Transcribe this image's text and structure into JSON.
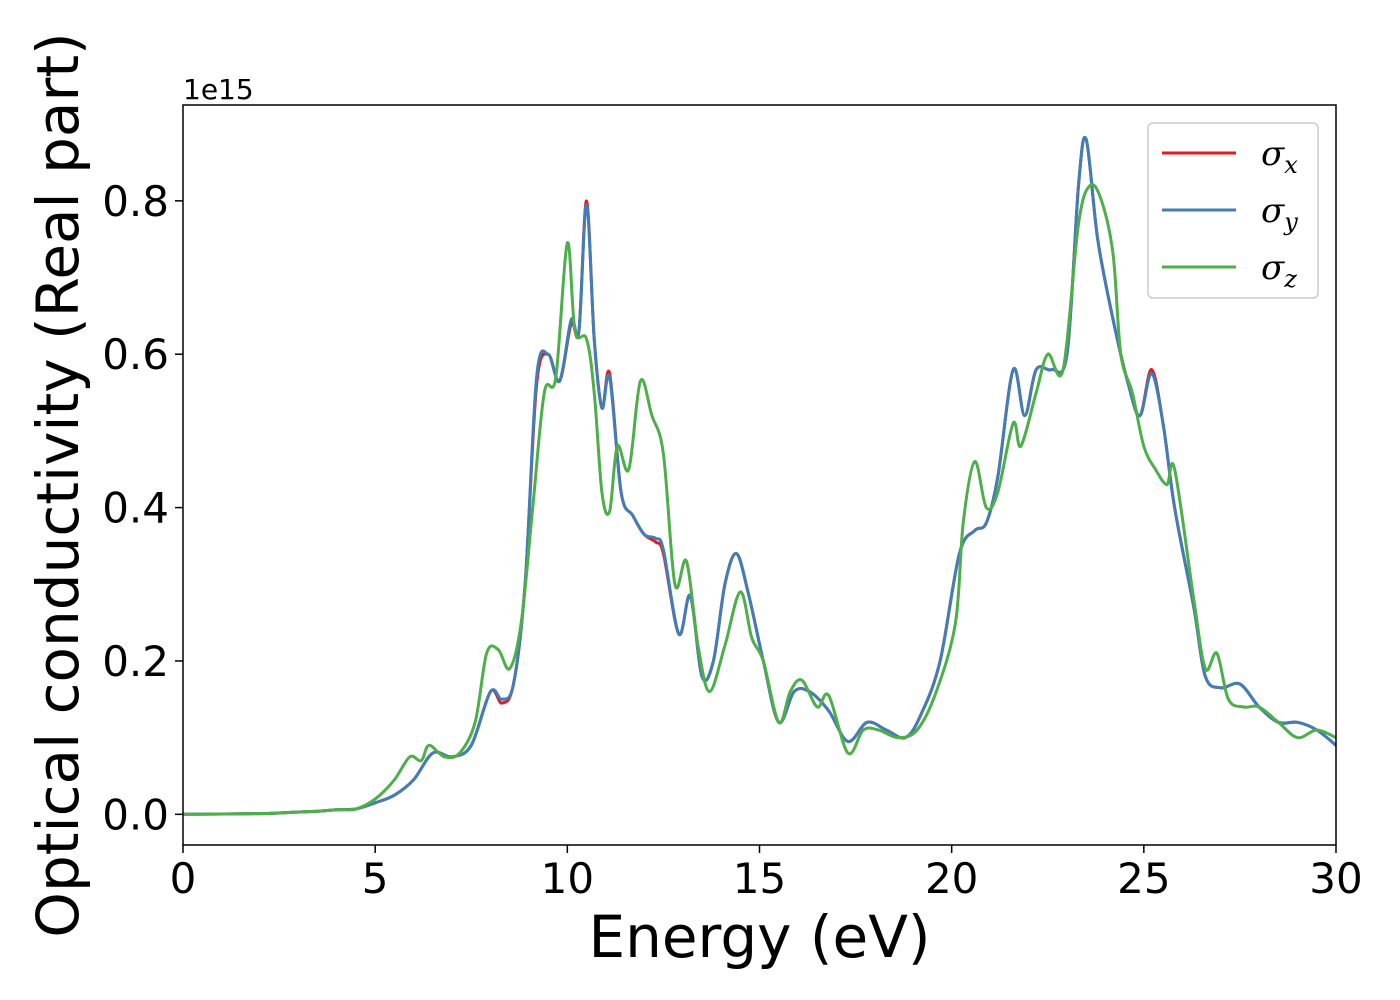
{
  "chart_data": {
    "type": "line",
    "xlabel": "Energy (eV)",
    "ylabel": "Optical conductivity (Real part)",
    "y_offset_label": "1e15",
    "xlim": [
      0,
      30
    ],
    "ylim": [
      -0.04,
      0.925
    ],
    "x_ticks": [
      0,
      5,
      10,
      15,
      20,
      25,
      30
    ],
    "y_ticks": [
      0.0,
      0.2,
      0.4,
      0.6,
      0.8
    ],
    "x_tick_labels": [
      "0",
      "5",
      "10",
      "15",
      "20",
      "25",
      "30"
    ],
    "y_tick_labels": [
      "0.0",
      "0.2",
      "0.4",
      "0.6",
      "0.8"
    ],
    "grid": false,
    "legend_position": "top-right",
    "series": [
      {
        "name": "σx",
        "symbol": "σ",
        "subscript": "x",
        "color": "#e41a1c",
        "points": [
          [
            0,
            0
          ],
          [
            2,
            0.001
          ],
          [
            3,
            0.003
          ],
          [
            3.5,
            0.004
          ],
          [
            4,
            0.006
          ],
          [
            4.5,
            0.007
          ],
          [
            5,
            0.015
          ],
          [
            5.5,
            0.025
          ],
          [
            6,
            0.045
          ],
          [
            6.5,
            0.08
          ],
          [
            7,
            0.075
          ],
          [
            7.5,
            0.09
          ],
          [
            8,
            0.16
          ],
          [
            8.3,
            0.145
          ],
          [
            8.6,
            0.17
          ],
          [
            8.9,
            0.3
          ],
          [
            9.2,
            0.56
          ],
          [
            9.5,
            0.6
          ],
          [
            9.8,
            0.565
          ],
          [
            10.1,
            0.64
          ],
          [
            10.3,
            0.63
          ],
          [
            10.5,
            0.8
          ],
          [
            10.7,
            0.62
          ],
          [
            10.9,
            0.53
          ],
          [
            11.1,
            0.575
          ],
          [
            11.4,
            0.42
          ],
          [
            11.7,
            0.39
          ],
          [
            12.0,
            0.365
          ],
          [
            12.3,
            0.355
          ],
          [
            12.5,
            0.34
          ],
          [
            12.9,
            0.235
          ],
          [
            13.2,
            0.285
          ],
          [
            13.5,
            0.18
          ],
          [
            13.8,
            0.2
          ],
          [
            14.1,
            0.3
          ],
          [
            14.4,
            0.34
          ],
          [
            14.7,
            0.29
          ],
          [
            15.1,
            0.2
          ],
          [
            15.5,
            0.12
          ],
          [
            15.9,
            0.16
          ],
          [
            16.3,
            0.16
          ],
          [
            16.8,
            0.135
          ],
          [
            17.3,
            0.095
          ],
          [
            17.8,
            0.12
          ],
          [
            18.3,
            0.11
          ],
          [
            18.8,
            0.1
          ],
          [
            19.2,
            0.13
          ],
          [
            19.7,
            0.2
          ],
          [
            20.2,
            0.34
          ],
          [
            20.6,
            0.37
          ],
          [
            20.9,
            0.38
          ],
          [
            21.2,
            0.44
          ],
          [
            21.6,
            0.58
          ],
          [
            21.9,
            0.52
          ],
          [
            22.2,
            0.58
          ],
          [
            22.6,
            0.58
          ],
          [
            23.0,
            0.6
          ],
          [
            23.3,
            0.82
          ],
          [
            23.5,
            0.88
          ],
          [
            23.8,
            0.75
          ],
          [
            24.2,
            0.645
          ],
          [
            24.6,
            0.56
          ],
          [
            24.9,
            0.52
          ],
          [
            25.2,
            0.58
          ],
          [
            25.5,
            0.51
          ],
          [
            25.8,
            0.4
          ],
          [
            26.3,
            0.27
          ],
          [
            26.6,
            0.18
          ],
          [
            27.0,
            0.165
          ],
          [
            27.5,
            0.17
          ],
          [
            28.0,
            0.14
          ],
          [
            28.5,
            0.12
          ],
          [
            29.0,
            0.12
          ],
          [
            29.5,
            0.11
          ],
          [
            30.0,
            0.09
          ]
        ]
      },
      {
        "name": "σy",
        "symbol": "σ",
        "subscript": "y",
        "color": "#3f7fb8",
        "points": [
          [
            0,
            0
          ],
          [
            2,
            0.001
          ],
          [
            3,
            0.003
          ],
          [
            3.5,
            0.004
          ],
          [
            4,
            0.006
          ],
          [
            4.5,
            0.007
          ],
          [
            5,
            0.015
          ],
          [
            5.5,
            0.025
          ],
          [
            6,
            0.045
          ],
          [
            6.5,
            0.08
          ],
          [
            7,
            0.075
          ],
          [
            7.5,
            0.09
          ],
          [
            8,
            0.16
          ],
          [
            8.3,
            0.15
          ],
          [
            8.6,
            0.17
          ],
          [
            8.9,
            0.3
          ],
          [
            9.2,
            0.57
          ],
          [
            9.5,
            0.6
          ],
          [
            9.8,
            0.565
          ],
          [
            10.1,
            0.645
          ],
          [
            10.3,
            0.63
          ],
          [
            10.5,
            0.795
          ],
          [
            10.7,
            0.62
          ],
          [
            10.9,
            0.53
          ],
          [
            11.1,
            0.57
          ],
          [
            11.4,
            0.42
          ],
          [
            11.7,
            0.39
          ],
          [
            12.0,
            0.365
          ],
          [
            12.3,
            0.36
          ],
          [
            12.5,
            0.345
          ],
          [
            12.9,
            0.235
          ],
          [
            13.2,
            0.285
          ],
          [
            13.5,
            0.18
          ],
          [
            13.8,
            0.2
          ],
          [
            14.1,
            0.3
          ],
          [
            14.4,
            0.34
          ],
          [
            14.7,
            0.29
          ],
          [
            15.1,
            0.2
          ],
          [
            15.5,
            0.12
          ],
          [
            15.9,
            0.16
          ],
          [
            16.3,
            0.16
          ],
          [
            16.8,
            0.135
          ],
          [
            17.3,
            0.095
          ],
          [
            17.8,
            0.12
          ],
          [
            18.3,
            0.11
          ],
          [
            18.8,
            0.1
          ],
          [
            19.2,
            0.13
          ],
          [
            19.7,
            0.2
          ],
          [
            20.2,
            0.34
          ],
          [
            20.6,
            0.37
          ],
          [
            20.9,
            0.38
          ],
          [
            21.2,
            0.44
          ],
          [
            21.6,
            0.58
          ],
          [
            21.9,
            0.52
          ],
          [
            22.2,
            0.58
          ],
          [
            22.6,
            0.58
          ],
          [
            23.0,
            0.6
          ],
          [
            23.3,
            0.82
          ],
          [
            23.5,
            0.88
          ],
          [
            23.8,
            0.75
          ],
          [
            24.2,
            0.645
          ],
          [
            24.6,
            0.56
          ],
          [
            24.9,
            0.52
          ],
          [
            25.2,
            0.575
          ],
          [
            25.5,
            0.51
          ],
          [
            25.8,
            0.4
          ],
          [
            26.3,
            0.27
          ],
          [
            26.6,
            0.18
          ],
          [
            27.0,
            0.165
          ],
          [
            27.5,
            0.17
          ],
          [
            28.0,
            0.14
          ],
          [
            28.5,
            0.12
          ],
          [
            29.0,
            0.12
          ],
          [
            29.5,
            0.11
          ],
          [
            30.0,
            0.09
          ]
        ]
      },
      {
        "name": "σz",
        "symbol": "σ",
        "subscript": "z",
        "color": "#4daf4a",
        "points": [
          [
            0,
            0
          ],
          [
            2,
            0.001
          ],
          [
            3,
            0.003
          ],
          [
            3.5,
            0.004
          ],
          [
            4,
            0.006
          ],
          [
            4.5,
            0.007
          ],
          [
            5,
            0.02
          ],
          [
            5.5,
            0.045
          ],
          [
            5.9,
            0.075
          ],
          [
            6.2,
            0.07
          ],
          [
            6.4,
            0.09
          ],
          [
            6.8,
            0.075
          ],
          [
            7.2,
            0.08
          ],
          [
            7.6,
            0.12
          ],
          [
            7.9,
            0.21
          ],
          [
            8.2,
            0.215
          ],
          [
            8.5,
            0.19
          ],
          [
            8.8,
            0.25
          ],
          [
            9.1,
            0.4
          ],
          [
            9.4,
            0.55
          ],
          [
            9.7,
            0.57
          ],
          [
            10.0,
            0.745
          ],
          [
            10.2,
            0.63
          ],
          [
            10.5,
            0.62
          ],
          [
            10.7,
            0.55
          ],
          [
            10.9,
            0.42
          ],
          [
            11.1,
            0.395
          ],
          [
            11.3,
            0.48
          ],
          [
            11.6,
            0.45
          ],
          [
            11.9,
            0.565
          ],
          [
            12.2,
            0.52
          ],
          [
            12.5,
            0.47
          ],
          [
            12.8,
            0.3
          ],
          [
            13.1,
            0.33
          ],
          [
            13.4,
            0.22
          ],
          [
            13.7,
            0.16
          ],
          [
            14.1,
            0.22
          ],
          [
            14.5,
            0.29
          ],
          [
            14.8,
            0.23
          ],
          [
            15.1,
            0.2
          ],
          [
            15.5,
            0.12
          ],
          [
            15.8,
            0.16
          ],
          [
            16.1,
            0.175
          ],
          [
            16.5,
            0.14
          ],
          [
            16.8,
            0.155
          ],
          [
            17.3,
            0.08
          ],
          [
            17.7,
            0.11
          ],
          [
            18.1,
            0.11
          ],
          [
            18.6,
            0.1
          ],
          [
            19.1,
            0.11
          ],
          [
            19.6,
            0.16
          ],
          [
            20.1,
            0.25
          ],
          [
            20.3,
            0.38
          ],
          [
            20.6,
            0.46
          ],
          [
            20.9,
            0.4
          ],
          [
            21.2,
            0.42
          ],
          [
            21.6,
            0.51
          ],
          [
            21.8,
            0.48
          ],
          [
            22.2,
            0.55
          ],
          [
            22.5,
            0.6
          ],
          [
            22.9,
            0.58
          ],
          [
            23.3,
            0.77
          ],
          [
            23.6,
            0.82
          ],
          [
            23.9,
            0.8
          ],
          [
            24.2,
            0.73
          ],
          [
            24.4,
            0.6
          ],
          [
            24.7,
            0.55
          ],
          [
            25.0,
            0.48
          ],
          [
            25.3,
            0.45
          ],
          [
            25.6,
            0.43
          ],
          [
            25.8,
            0.45
          ],
          [
            26.3,
            0.28
          ],
          [
            26.6,
            0.19
          ],
          [
            26.9,
            0.21
          ],
          [
            27.2,
            0.15
          ],
          [
            27.6,
            0.14
          ],
          [
            28.0,
            0.14
          ],
          [
            28.5,
            0.12
          ],
          [
            29.0,
            0.1
          ],
          [
            29.5,
            0.11
          ],
          [
            30.0,
            0.1
          ]
        ]
      }
    ]
  }
}
